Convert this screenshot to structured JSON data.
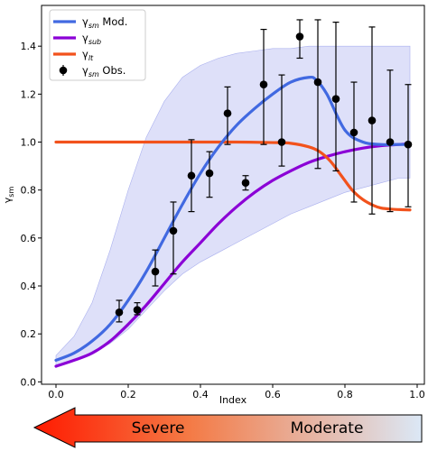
{
  "chart_data": {
    "type": "line",
    "title": "",
    "xlabel": "Index",
    "ylabel": "γ_sm",
    "xlim": [
      -0.04,
      1.02
    ],
    "ylim": [
      -0.01,
      1.57
    ],
    "xticks": [
      "0.0",
      "0.2",
      "0.4",
      "0.6",
      "0.8",
      "1.0"
    ],
    "xtick_values": [
      0.0,
      0.2,
      0.4,
      0.6,
      0.8,
      1.0
    ],
    "yticks": [
      "0.0",
      "0.2",
      "0.4",
      "0.6",
      "0.8",
      "1.0",
      "1.2",
      "1.4"
    ],
    "ytick_values": [
      0.0,
      0.2,
      0.4,
      0.6,
      0.8,
      1.0,
      1.2,
      1.4
    ],
    "grid": false,
    "legend_position": "top-left",
    "series": [
      {
        "name": "γsm Mod.",
        "legend_label": "γ",
        "legend_sub": "sm",
        "legend_suffix": " Mod.",
        "color": "#4169e1",
        "x": [
          0.0,
          0.05,
          0.1,
          0.15,
          0.2,
          0.25,
          0.3,
          0.35,
          0.4,
          0.45,
          0.5,
          0.55,
          0.6,
          0.65,
          0.7,
          0.72,
          0.75,
          0.8,
          0.85,
          0.9,
          0.95,
          0.98
        ],
        "y": [
          0.09,
          0.12,
          0.17,
          0.24,
          0.34,
          0.46,
          0.6,
          0.74,
          0.87,
          0.98,
          1.07,
          1.14,
          1.2,
          1.25,
          1.27,
          1.26,
          1.2,
          1.05,
          1.0,
          0.99,
          0.99,
          0.99
        ]
      },
      {
        "name": "γsub",
        "legend_label": "γ",
        "legend_sub": "sub",
        "legend_suffix": "",
        "color": "#8b00d6",
        "x": [
          0.0,
          0.05,
          0.1,
          0.15,
          0.2,
          0.25,
          0.3,
          0.35,
          0.4,
          0.45,
          0.5,
          0.55,
          0.6,
          0.65,
          0.7,
          0.75,
          0.8,
          0.85,
          0.9,
          0.95,
          0.98
        ],
        "y": [
          0.065,
          0.09,
          0.12,
          0.17,
          0.24,
          0.32,
          0.41,
          0.5,
          0.58,
          0.66,
          0.73,
          0.79,
          0.84,
          0.88,
          0.915,
          0.94,
          0.96,
          0.975,
          0.985,
          0.99,
          0.993
        ]
      },
      {
        "name": "γlt",
        "legend_label": "γ",
        "legend_sub": "lt",
        "legend_suffix": "",
        "color": "#f2521c",
        "x": [
          0.0,
          0.1,
          0.2,
          0.3,
          0.4,
          0.5,
          0.6,
          0.65,
          0.7,
          0.73,
          0.76,
          0.79,
          0.82,
          0.85,
          0.88,
          0.9,
          0.93,
          0.96,
          0.98
        ],
        "y": [
          1.0,
          1.0,
          1.0,
          1.0,
          1.0,
          1.0,
          0.998,
          0.995,
          0.98,
          0.96,
          0.92,
          0.86,
          0.8,
          0.76,
          0.735,
          0.725,
          0.72,
          0.718,
          0.717
        ]
      }
    ],
    "band": {
      "name": "uncertainty band",
      "color": "#c8cbf5",
      "x": [
        0.0,
        0.05,
        0.1,
        0.15,
        0.2,
        0.25,
        0.3,
        0.35,
        0.4,
        0.45,
        0.5,
        0.55,
        0.6,
        0.65,
        0.7,
        0.75,
        0.8,
        0.85,
        0.9,
        0.95,
        0.98
      ],
      "lower": [
        0.07,
        0.09,
        0.12,
        0.16,
        0.22,
        0.3,
        0.38,
        0.45,
        0.5,
        0.54,
        0.58,
        0.62,
        0.66,
        0.7,
        0.73,
        0.76,
        0.79,
        0.81,
        0.83,
        0.85,
        0.85
      ],
      "upper": [
        0.11,
        0.19,
        0.33,
        0.55,
        0.8,
        1.02,
        1.17,
        1.27,
        1.32,
        1.35,
        1.37,
        1.38,
        1.39,
        1.39,
        1.4,
        1.4,
        1.4,
        1.4,
        1.4,
        1.4,
        1.4
      ]
    },
    "observations": {
      "name": "γsm Obs.",
      "legend_label": "γ",
      "legend_sub": "sm",
      "legend_suffix": " Obs.",
      "color": "#000000",
      "points": [
        {
          "x": 0.175,
          "y": 0.29,
          "lo": 0.25,
          "hi": 0.34
        },
        {
          "x": 0.225,
          "y": 0.3,
          "lo": 0.28,
          "hi": 0.33
        },
        {
          "x": 0.275,
          "y": 0.46,
          "lo": 0.4,
          "hi": 0.55
        },
        {
          "x": 0.325,
          "y": 0.63,
          "lo": 0.45,
          "hi": 0.75
        },
        {
          "x": 0.375,
          "y": 0.86,
          "lo": 0.71,
          "hi": 1.01
        },
        {
          "x": 0.425,
          "y": 0.87,
          "lo": 0.77,
          "hi": 0.96
        },
        {
          "x": 0.475,
          "y": 1.12,
          "lo": 0.99,
          "hi": 1.23
        },
        {
          "x": 0.525,
          "y": 0.83,
          "lo": 0.8,
          "hi": 0.86
        },
        {
          "x": 0.575,
          "y": 1.24,
          "lo": 0.99,
          "hi": 1.47
        },
        {
          "x": 0.625,
          "y": 1.0,
          "lo": 0.9,
          "hi": 1.28
        },
        {
          "x": 0.675,
          "y": 1.44,
          "lo": 1.35,
          "hi": 1.51
        },
        {
          "x": 0.725,
          "y": 1.25,
          "lo": 0.89,
          "hi": 1.51
        },
        {
          "x": 0.775,
          "y": 1.18,
          "lo": 0.88,
          "hi": 1.5
        },
        {
          "x": 0.825,
          "y": 1.04,
          "lo": 0.75,
          "hi": 1.25
        },
        {
          "x": 0.875,
          "y": 1.09,
          "lo": 0.7,
          "hi": 1.48
        },
        {
          "x": 0.925,
          "y": 1.0,
          "lo": 0.71,
          "hi": 1.3
        },
        {
          "x": 0.975,
          "y": 0.99,
          "lo": 0.73,
          "hi": 1.24
        }
      ]
    },
    "arrow": {
      "left_label": "Severe",
      "right_label": "Moderate",
      "color_start": "#ff1a00",
      "color_end": "#dbe8f6"
    }
  }
}
